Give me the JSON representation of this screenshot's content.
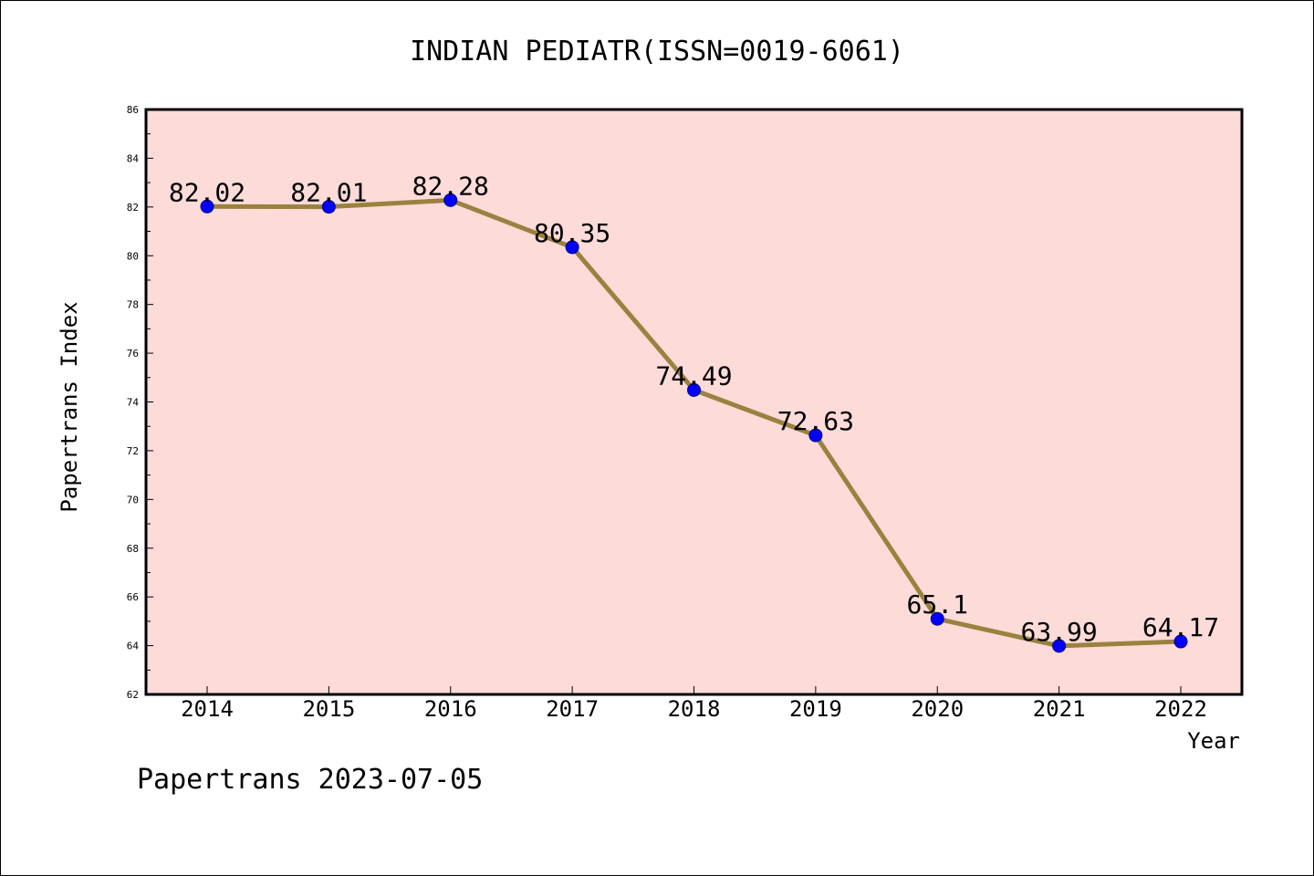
{
  "chart_data": {
    "type": "line",
    "title": "INDIAN PEDIATR(ISSN=0019-6061)",
    "xlabel": "Year",
    "ylabel": "Papertrans Index",
    "footer": "Papertrans 2023-07-05",
    "categories": [
      "2014",
      "2015",
      "2016",
      "2017",
      "2018",
      "2019",
      "2020",
      "2021",
      "2022"
    ],
    "series": [
      {
        "values": [
          82.02,
          82.01,
          82.28,
          80.35,
          74.49,
          72.63,
          65.1,
          63.99,
          64.17
        ],
        "labels": [
          "82.02",
          "82.01",
          "82.28",
          "80.35",
          "74.49",
          "72.63",
          "65.1",
          "63.99",
          "64.17"
        ]
      }
    ],
    "ylim": [
      62,
      86
    ],
    "yticks": [
      "62",
      "64",
      "66",
      "68",
      "70",
      "72",
      "74",
      "76",
      "78",
      "80",
      "82",
      "84",
      "86"
    ],
    "grid": false,
    "colors": {
      "plot_background": "#fddbd9",
      "line": "#9b813f",
      "marker": "#0000ff"
    }
  }
}
